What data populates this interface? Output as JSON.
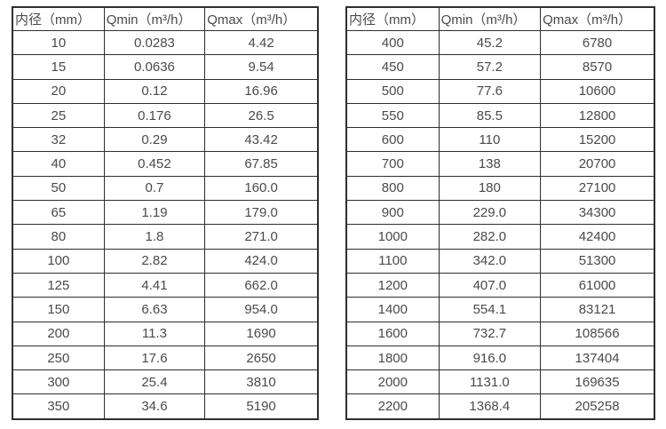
{
  "page": {
    "background": "#ffffff",
    "text_color": "#4a4a4a",
    "border_color": "#2e2e2e"
  },
  "chart_data": [
    {
      "type": "table",
      "name": "flow-spec-table-small-diameters",
      "columns": [
        "内径（mm）",
        "Qmin（m³/h）",
        "Qmax（m³/h）"
      ],
      "rows": [
        [
          "10",
          "0.0283",
          "4.42"
        ],
        [
          "15",
          "0.0636",
          "9.54"
        ],
        [
          "20",
          "0.12",
          "16.96"
        ],
        [
          "25",
          "0.176",
          "26.5"
        ],
        [
          "32",
          "0.29",
          "43.42"
        ],
        [
          "40",
          "0.452",
          "67.85"
        ],
        [
          "50",
          "0.7",
          "160.0"
        ],
        [
          "65",
          "1.19",
          "179.0"
        ],
        [
          "80",
          "1.8",
          "271.0"
        ],
        [
          "100",
          "2.82",
          "424.0"
        ],
        [
          "125",
          "4.41",
          "662.0"
        ],
        [
          "150",
          "6.63",
          "954.0"
        ],
        [
          "200",
          "11.3",
          "1690"
        ],
        [
          "250",
          "17.6",
          "2650"
        ],
        [
          "300",
          "25.4",
          "3810"
        ],
        [
          "350",
          "34.6",
          "5190"
        ]
      ]
    },
    {
      "type": "table",
      "name": "flow-spec-table-large-diameters",
      "columns": [
        "内径（mm）",
        "Qmin（m³/h）",
        "Qmax（m³/h）"
      ],
      "rows": [
        [
          "400",
          "45.2",
          "6780"
        ],
        [
          "450",
          "57.2",
          "8570"
        ],
        [
          "500",
          "77.6",
          "10600"
        ],
        [
          "550",
          "85.5",
          "12800"
        ],
        [
          "600",
          "110",
          "15200"
        ],
        [
          "700",
          "138",
          "20700"
        ],
        [
          "800",
          "180",
          "27100"
        ],
        [
          "900",
          "229.0",
          "34300"
        ],
        [
          "1000",
          "282.0",
          "42400"
        ],
        [
          "1100",
          "342.0",
          "51300"
        ],
        [
          "1200",
          "407.0",
          "61000"
        ],
        [
          "1400",
          "554.1",
          "83121"
        ],
        [
          "1600",
          "732.7",
          "108566"
        ],
        [
          "1800",
          "916.0",
          "137404"
        ],
        [
          "2000",
          "1131.0",
          "169635"
        ],
        [
          "2200",
          "1368.4",
          "205258"
        ]
      ]
    }
  ]
}
